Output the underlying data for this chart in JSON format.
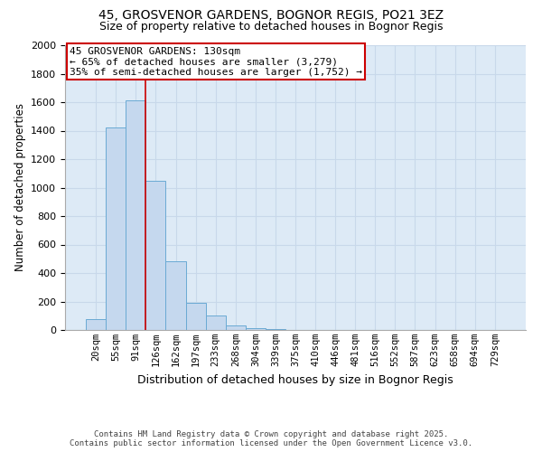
{
  "title": "45, GROSVENOR GARDENS, BOGNOR REGIS, PO21 3EZ",
  "subtitle": "Size of property relative to detached houses in Bognor Regis",
  "xlabel": "Distribution of detached houses by size in Bognor Regis",
  "ylabel": "Number of detached properties",
  "bar_color": "#c5d8ee",
  "bar_edge_color": "#6aaad4",
  "categories": [
    "20sqm",
    "55sqm",
    "91sqm",
    "126sqm",
    "162sqm",
    "197sqm",
    "233sqm",
    "268sqm",
    "304sqm",
    "339sqm",
    "375sqm",
    "410sqm",
    "446sqm",
    "481sqm",
    "516sqm",
    "552sqm",
    "587sqm",
    "623sqm",
    "658sqm",
    "694sqm",
    "729sqm"
  ],
  "values": [
    75,
    1420,
    1615,
    1050,
    480,
    190,
    100,
    30,
    10,
    5,
    0,
    0,
    0,
    0,
    0,
    0,
    0,
    0,
    0,
    0,
    0
  ],
  "ylim": [
    0,
    2000
  ],
  "yticks": [
    0,
    200,
    400,
    600,
    800,
    1000,
    1200,
    1400,
    1600,
    1800,
    2000
  ],
  "property_line_x": 2.5,
  "annotation_title": "45 GROSVENOR GARDENS: 130sqm",
  "annotation_line1": "← 65% of detached houses are smaller (3,279)",
  "annotation_line2": "35% of semi-detached houses are larger (1,752) →",
  "annotation_box_color": "#ffffff",
  "annotation_box_edge": "#cc0000",
  "property_line_color": "#cc0000",
  "grid_color": "#c8d8ea",
  "plot_background": "#ddeaf6",
  "footer_line1": "Contains HM Land Registry data © Crown copyright and database right 2025.",
  "footer_line2": "Contains public sector information licensed under the Open Government Licence v3.0."
}
